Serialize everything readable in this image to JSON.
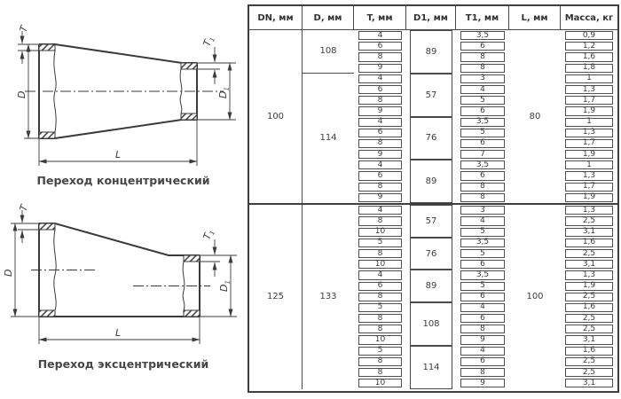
{
  "figures": {
    "concentric": {
      "caption": "Переход концентрический"
    },
    "eccentric": {
      "caption": "Переход эксцентрический"
    }
  },
  "dim_labels": {
    "t": "T",
    "d": "D",
    "l": "L",
    "sub": "1"
  },
  "colors": {
    "line": "#3b3b3b",
    "border": "#4a4a4a",
    "text": "#3d3d3d"
  },
  "table": {
    "headers": [
      "DN, мм",
      "D, мм",
      "T, мм",
      "D1, мм",
      "T1, мм",
      "L, мм",
      "Масса, кг"
    ],
    "dn_groups": [
      {
        "dn": "100",
        "l": "80",
        "d_groups": [
          {
            "d": "108",
            "d1_groups": [
              {
                "d1": "89",
                "rows": [
                  [
                    "4",
                    "3,5",
                    "0,9"
                  ],
                  [
                    "6",
                    "6",
                    "1,2"
                  ],
                  [
                    "8",
                    "8",
                    "1,6"
                  ],
                  [
                    "9",
                    "8",
                    "1,8"
                  ]
                ]
              }
            ]
          },
          {
            "d": "114",
            "d1_groups": [
              {
                "d1": "57",
                "rows": [
                  [
                    "4",
                    "3",
                    "1"
                  ],
                  [
                    "6",
                    "4",
                    "1,3"
                  ],
                  [
                    "8",
                    "5",
                    "1,7"
                  ],
                  [
                    "9",
                    "6",
                    "1,9"
                  ]
                ]
              },
              {
                "d1": "76",
                "rows": [
                  [
                    "4",
                    "3,5",
                    "1"
                  ],
                  [
                    "6",
                    "5",
                    "1,3"
                  ],
                  [
                    "8",
                    "6",
                    "1,7"
                  ],
                  [
                    "9",
                    "7",
                    "1,9"
                  ]
                ]
              },
              {
                "d1": "89",
                "rows": [
                  [
                    "4",
                    "3,5",
                    "1"
                  ],
                  [
                    "6",
                    "6",
                    "1,3"
                  ],
                  [
                    "8",
                    "8",
                    "1,7"
                  ],
                  [
                    "9",
                    "8",
                    "1,9"
                  ]
                ]
              }
            ]
          }
        ]
      },
      {
        "dn": "125",
        "l": "100",
        "d_groups": [
          {
            "d": "133",
            "d1_groups": [
              {
                "d1": "57",
                "rows": [
                  [
                    "4",
                    "3",
                    "1,3"
                  ],
                  [
                    "8",
                    "4",
                    "2,5"
                  ],
                  [
                    "10",
                    "5",
                    "3,1"
                  ]
                ]
              },
              {
                "d1": "76",
                "rows": [
                  [
                    "5",
                    "3,5",
                    "1,6"
                  ],
                  [
                    "8",
                    "5",
                    "2,5"
                  ],
                  [
                    "10",
                    "6",
                    "3,1"
                  ]
                ]
              },
              {
                "d1": "89",
                "rows": [
                  [
                    "4",
                    "3,5",
                    "1,3"
                  ],
                  [
                    "6",
                    "5",
                    "1,9"
                  ],
                  [
                    "8",
                    "6",
                    "2,5"
                  ]
                ]
              },
              {
                "d1": "108",
                "rows": [
                  [
                    "5",
                    "4",
                    "1,6"
                  ],
                  [
                    "8",
                    "6",
                    "2,5"
                  ],
                  [
                    "8",
                    "8",
                    "2,5"
                  ],
                  [
                    "10",
                    "9",
                    "3,1"
                  ]
                ]
              },
              {
                "d1": "114",
                "rows": [
                  [
                    "5",
                    "4",
                    "1,6"
                  ],
                  [
                    "8",
                    "6",
                    "2,5"
                  ],
                  [
                    "8",
                    "8",
                    "2,5"
                  ],
                  [
                    "10",
                    "9",
                    "3,1"
                  ]
                ]
              }
            ]
          }
        ]
      }
    ]
  }
}
